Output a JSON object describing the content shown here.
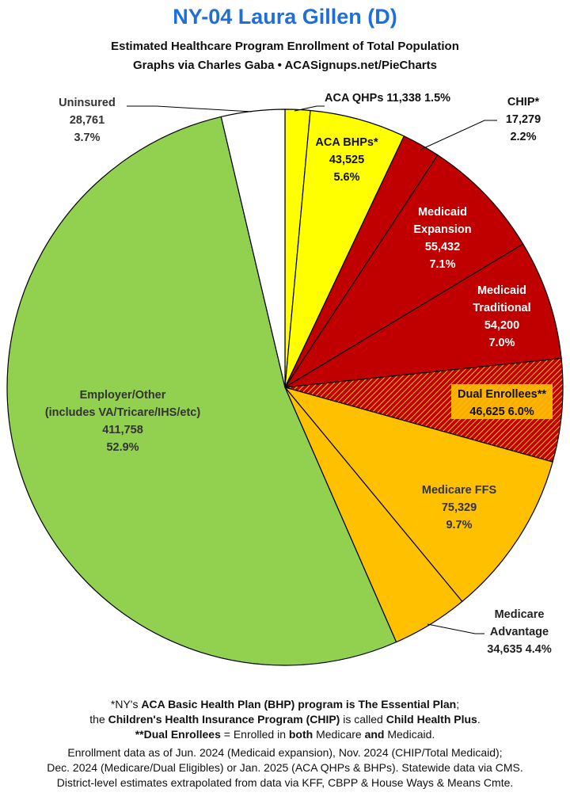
{
  "title": "NY-04 Laura Gillen (D)",
  "subtitle1": "Estimated Healthcare Program Enrollment of Total Population",
  "subtitle2": "Graphs via Charles Gaba  •  ACASignups.net/PieCharts",
  "notes": {
    "l1_a": "*NY's ",
    "l1_b": "ACA Basic Health Plan (BHP) program is The Essential Plan",
    "l1_c": ";",
    "l2_a": "the ",
    "l2_b": "Children's Health Insurance Program (CHIP)",
    "l2_c": " is called ",
    "l2_d": "Child Health Plus",
    "l2_e": ".",
    "l3_a": "**Dual Enrollees",
    "l3_b": " = Enrolled in ",
    "l3_c": "both",
    "l3_d": " Medicare ",
    "l3_e": "and",
    "l3_f": " Medicaid."
  },
  "source": {
    "l1": "Enrollment data as of Jun. 2024 (Medicaid expansion), Nov. 2024 (CHIP/Total Medicaid);",
    "l2": "Dec. 2024 (Medicare/Dual Eligibles) or Jan. 2025 (ACA QHPs & BHPs). Statewide data via CMS.",
    "l3": "District-level estimates extrapolated from data via KFF, CBPP & House Ways & Means Cmte."
  },
  "chart_data": {
    "type": "pie",
    "start_angle": "12 o'clock",
    "direction": "clockwise",
    "slices": [
      {
        "label": "ACA QHPs",
        "value": 11338,
        "value_text": "11,338",
        "percent": "1.5%",
        "color": "#ffff00",
        "hatched": false,
        "label_color": "#111111"
      },
      {
        "label": "ACA BHPs*",
        "value": 43525,
        "value_text": "43,525",
        "percent": "5.6%",
        "color": "#ffff00",
        "hatched": false,
        "label_color": "#111111"
      },
      {
        "label": "CHIP*",
        "value": 17279,
        "value_text": "17,279",
        "percent": "2.2%",
        "color": "#c00000",
        "hatched": false,
        "label_color": "#111111"
      },
      {
        "label": "Medicaid Expansion",
        "value": 55432,
        "value_text": "55,432",
        "percent": "7.1%",
        "color": "#c00000",
        "hatched": false,
        "label_color": "#ffffff"
      },
      {
        "label": "Medicaid Traditional",
        "value": 54200,
        "value_text": "54,200",
        "percent": "7.0%",
        "color": "#c00000",
        "hatched": false,
        "label_color": "#ffffff"
      },
      {
        "label": "Dual Enrollees**",
        "value": 46625,
        "value_text": "46,625",
        "percent": "6.0%",
        "color": "#c00000",
        "hatch_color": "#ffc000",
        "hatched": true,
        "label_color": "#111111"
      },
      {
        "label": "Medicare FFS",
        "value": 75329,
        "value_text": "75,329",
        "percent": "9.7%",
        "color": "#ffc000",
        "hatched": false,
        "label_color": "#111111"
      },
      {
        "label": "Medicare Advantage",
        "value": 34635,
        "value_text": "34,635",
        "percent": "4.4%",
        "color": "#ffc000",
        "hatched": false,
        "label_color": "#111111"
      },
      {
        "label": "Employer/Other (includes VA/Tricare/IHS/etc)",
        "value": 411758,
        "value_text": "411,758",
        "percent": "52.9%",
        "color": "#92d050",
        "hatched": false,
        "label_color": "#111111"
      },
      {
        "label": "Uninsured",
        "value": 28761,
        "value_text": "28,761",
        "percent": "3.7%",
        "color": "#ffffff",
        "hatched": false,
        "label_color": "#111111"
      }
    ],
    "labels": {
      "aca_qhps": "ACA QHPs 11,338 1.5%",
      "aca_bhps": [
        "ACA BHPs*",
        "43,525",
        "5.6%"
      ],
      "chip": [
        "CHIP*",
        "17,279",
        "2.2%"
      ],
      "medicaid_expansion": [
        "Medicaid",
        "Expansion",
        "55,432",
        "7.1%"
      ],
      "medicaid_traditional": [
        "Medicaid",
        "Traditional",
        "54,200",
        "7.0%"
      ],
      "dual_enrollees": [
        "Dual Enrollees**",
        "46,625 6.0%"
      ],
      "medicare_ffs": [
        "Medicare FFS",
        "75,329",
        "9.7%"
      ],
      "medicare_advantage": [
        "Medicare",
        "Advantage",
        "34,635 4.4%"
      ],
      "employer_other": [
        "Employer/Other",
        "(includes VA/Tricare/IHS/etc)",
        "411,758",
        "52.9%"
      ],
      "uninsured": [
        "Uninsured",
        "28,761",
        "3.7%"
      ]
    }
  }
}
